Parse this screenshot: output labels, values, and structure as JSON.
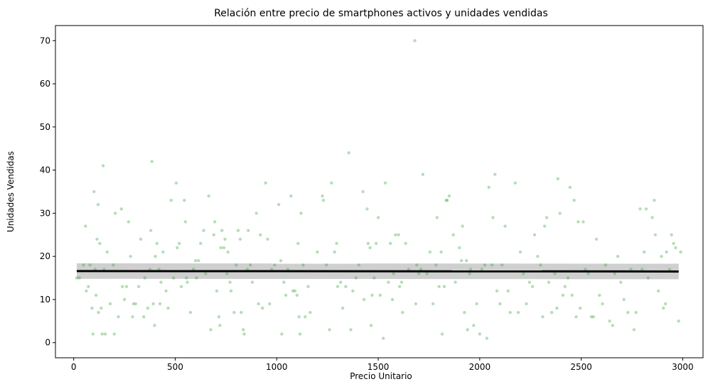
{
  "chart_data": {
    "type": "scatter",
    "title": "Relación entre precio de smartphones activos y unidades vendidas",
    "xlabel": "Precio Unitario",
    "ylabel": "Unidades Vendidas",
    "xlim": [
      -90,
      3100
    ],
    "ylim": [
      -3.5,
      73.5
    ],
    "xticks": [
      0,
      500,
      1000,
      1500,
      2000,
      2500,
      3000
    ],
    "yticks": [
      0,
      10,
      20,
      30,
      40,
      50,
      60,
      70
    ],
    "grid": false,
    "legend": "none",
    "point_color": "#2ca02c",
    "line_color": "#000000",
    "band_color": "#bfbfbf",
    "regression": {
      "x": [
        15,
        2980
      ],
      "y": [
        16.6,
        16.5
      ],
      "ci_low": [
        14.8,
        14.7
      ],
      "ci_high": [
        18.4,
        18.3
      ]
    },
    "points": [
      [
        15,
        15
      ],
      [
        28,
        15
      ],
      [
        48,
        18
      ],
      [
        58,
        27
      ],
      [
        62,
        12
      ],
      [
        72,
        13
      ],
      [
        80,
        18
      ],
      [
        90,
        8
      ],
      [
        95,
        2
      ],
      [
        100,
        35
      ],
      [
        105,
        17
      ],
      [
        110,
        11
      ],
      [
        115,
        24
      ],
      [
        120,
        32
      ],
      [
        122,
        7
      ],
      [
        128,
        23
      ],
      [
        135,
        8
      ],
      [
        140,
        2
      ],
      [
        145,
        41
      ],
      [
        150,
        17
      ],
      [
        155,
        2
      ],
      [
        165,
        21
      ],
      [
        180,
        9
      ],
      [
        195,
        18
      ],
      [
        200,
        2
      ],
      [
        205,
        30
      ],
      [
        220,
        6
      ],
      [
        235,
        31
      ],
      [
        240,
        13
      ],
      [
        250,
        10
      ],
      [
        260,
        13
      ],
      [
        270,
        28
      ],
      [
        280,
        20
      ],
      [
        290,
        6
      ],
      [
        295,
        9
      ],
      [
        305,
        9
      ],
      [
        320,
        13
      ],
      [
        330,
        24
      ],
      [
        345,
        6
      ],
      [
        350,
        15
      ],
      [
        365,
        8
      ],
      [
        375,
        17
      ],
      [
        380,
        26
      ],
      [
        385,
        42
      ],
      [
        392,
        9
      ],
      [
        398,
        4
      ],
      [
        402,
        20
      ],
      [
        410,
        23
      ],
      [
        420,
        17
      ],
      [
        425,
        9
      ],
      [
        430,
        14
      ],
      [
        440,
        21
      ],
      [
        455,
        12
      ],
      [
        465,
        8
      ],
      [
        480,
        33
      ],
      [
        492,
        15
      ],
      [
        505,
        37
      ],
      [
        510,
        22
      ],
      [
        520,
        23
      ],
      [
        530,
        13
      ],
      [
        545,
        33
      ],
      [
        550,
        28
      ],
      [
        555,
        15
      ],
      [
        560,
        14
      ],
      [
        575,
        7
      ],
      [
        590,
        17
      ],
      [
        600,
        19
      ],
      [
        605,
        15
      ],
      [
        615,
        19
      ],
      [
        625,
        23
      ],
      [
        640,
        26
      ],
      [
        650,
        16
      ],
      [
        665,
        34
      ],
      [
        675,
        3
      ],
      [
        690,
        25
      ],
      [
        695,
        28
      ],
      [
        705,
        12
      ],
      [
        715,
        6
      ],
      [
        720,
        4
      ],
      [
        725,
        22
      ],
      [
        730,
        26
      ],
      [
        740,
        22
      ],
      [
        745,
        24
      ],
      [
        755,
        16
      ],
      [
        760,
        21
      ],
      [
        770,
        14
      ],
      [
        775,
        12
      ],
      [
        790,
        7
      ],
      [
        800,
        18
      ],
      [
        810,
        26
      ],
      [
        820,
        24
      ],
      [
        825,
        7
      ],
      [
        835,
        3
      ],
      [
        840,
        2
      ],
      [
        855,
        17
      ],
      [
        860,
        26
      ],
      [
        870,
        18
      ],
      [
        880,
        14
      ],
      [
        900,
        30
      ],
      [
        910,
        9
      ],
      [
        920,
        25
      ],
      [
        930,
        8
      ],
      [
        945,
        37
      ],
      [
        955,
        24
      ],
      [
        965,
        9
      ],
      [
        975,
        17
      ],
      [
        990,
        18
      ],
      [
        1010,
        32
      ],
      [
        1020,
        19
      ],
      [
        1025,
        2
      ],
      [
        1035,
        14
      ],
      [
        1045,
        11
      ],
      [
        1055,
        17
      ],
      [
        1070,
        34
      ],
      [
        1080,
        12
      ],
      [
        1090,
        12
      ],
      [
        1100,
        11
      ],
      [
        1105,
        23
      ],
      [
        1110,
        6
      ],
      [
        1115,
        2
      ],
      [
        1120,
        30
      ],
      [
        1130,
        18
      ],
      [
        1140,
        6
      ],
      [
        1155,
        13
      ],
      [
        1165,
        7
      ],
      [
        1200,
        21
      ],
      [
        1225,
        34
      ],
      [
        1230,
        33
      ],
      [
        1245,
        18
      ],
      [
        1260,
        3
      ],
      [
        1270,
        37
      ],
      [
        1285,
        21
      ],
      [
        1295,
        23
      ],
      [
        1300,
        13
      ],
      [
        1315,
        14
      ],
      [
        1325,
        8
      ],
      [
        1340,
        13
      ],
      [
        1355,
        44
      ],
      [
        1365,
        3
      ],
      [
        1375,
        12
      ],
      [
        1390,
        15
      ],
      [
        1405,
        18
      ],
      [
        1425,
        35
      ],
      [
        1430,
        10
      ],
      [
        1445,
        31
      ],
      [
        1450,
        23
      ],
      [
        1460,
        22
      ],
      [
        1465,
        4
      ],
      [
        1470,
        11
      ],
      [
        1480,
        15
      ],
      [
        1490,
        23
      ],
      [
        1500,
        29
      ],
      [
        1510,
        11
      ],
      [
        1525,
        1
      ],
      [
        1535,
        37
      ],
      [
        1550,
        14
      ],
      [
        1560,
        23
      ],
      [
        1570,
        10
      ],
      [
        1575,
        16
      ],
      [
        1585,
        25
      ],
      [
        1600,
        25
      ],
      [
        1605,
        13
      ],
      [
        1615,
        14
      ],
      [
        1620,
        7
      ],
      [
        1635,
        23
      ],
      [
        1650,
        17
      ],
      [
        1680,
        70
      ],
      [
        1685,
        9
      ],
      [
        1690,
        18
      ],
      [
        1700,
        16
      ],
      [
        1710,
        17
      ],
      [
        1720,
        39
      ],
      [
        1740,
        16
      ],
      [
        1755,
        21
      ],
      [
        1770,
        9
      ],
      [
        1785,
        18
      ],
      [
        1790,
        29
      ],
      [
        1800,
        13
      ],
      [
        1810,
        21
      ],
      [
        1815,
        2
      ],
      [
        1825,
        13
      ],
      [
        1835,
        33
      ],
      [
        1840,
        33
      ],
      [
        1850,
        34
      ],
      [
        1870,
        25
      ],
      [
        1880,
        14
      ],
      [
        1900,
        22
      ],
      [
        1910,
        19
      ],
      [
        1915,
        27
      ],
      [
        1925,
        7
      ],
      [
        1935,
        19
      ],
      [
        1940,
        3
      ],
      [
        1950,
        16
      ],
      [
        1955,
        17
      ],
      [
        1970,
        4
      ],
      [
        1985,
        9
      ],
      [
        2000,
        2
      ],
      [
        2010,
        17
      ],
      [
        2025,
        18
      ],
      [
        2035,
        1
      ],
      [
        2045,
        36
      ],
      [
        2060,
        18
      ],
      [
        2065,
        29
      ],
      [
        2075,
        39
      ],
      [
        2085,
        12
      ],
      [
        2100,
        9
      ],
      [
        2110,
        18
      ],
      [
        2125,
        27
      ],
      [
        2140,
        12
      ],
      [
        2150,
        7
      ],
      [
        2175,
        37
      ],
      [
        2190,
        7
      ],
      [
        2200,
        21
      ],
      [
        2215,
        16
      ],
      [
        2230,
        9
      ],
      [
        2245,
        14
      ],
      [
        2260,
        13
      ],
      [
        2270,
        25
      ],
      [
        2285,
        20
      ],
      [
        2300,
        18
      ],
      [
        2310,
        6
      ],
      [
        2320,
        27
      ],
      [
        2330,
        29
      ],
      [
        2340,
        14
      ],
      [
        2355,
        7
      ],
      [
        2370,
        16
      ],
      [
        2380,
        8
      ],
      [
        2385,
        38
      ],
      [
        2395,
        30
      ],
      [
        2410,
        11
      ],
      [
        2420,
        13
      ],
      [
        2435,
        15
      ],
      [
        2445,
        36
      ],
      [
        2455,
        11
      ],
      [
        2465,
        33
      ],
      [
        2475,
        6
      ],
      [
        2485,
        28
      ],
      [
        2495,
        8
      ],
      [
        2510,
        28
      ],
      [
        2520,
        17
      ],
      [
        2535,
        16
      ],
      [
        2550,
        6
      ],
      [
        2560,
        6
      ],
      [
        2575,
        24
      ],
      [
        2590,
        11
      ],
      [
        2605,
        9
      ],
      [
        2620,
        18
      ],
      [
        2640,
        5
      ],
      [
        2655,
        4
      ],
      [
        2665,
        16
      ],
      [
        2680,
        20
      ],
      [
        2695,
        14
      ],
      [
        2710,
        10
      ],
      [
        2730,
        7
      ],
      [
        2745,
        17
      ],
      [
        2760,
        3
      ],
      [
        2770,
        7
      ],
      [
        2790,
        31
      ],
      [
        2800,
        17
      ],
      [
        2810,
        21
      ],
      [
        2820,
        31
      ],
      [
        2830,
        15
      ],
      [
        2850,
        29
      ],
      [
        2860,
        33
      ],
      [
        2865,
        25
      ],
      [
        2880,
        12
      ],
      [
        2895,
        20
      ],
      [
        2905,
        8
      ],
      [
        2915,
        9
      ],
      [
        2920,
        21
      ],
      [
        2935,
        17
      ],
      [
        2945,
        25
      ],
      [
        2955,
        23
      ],
      [
        2965,
        22
      ],
      [
        2980,
        5
      ],
      [
        2990,
        21
      ]
    ]
  }
}
